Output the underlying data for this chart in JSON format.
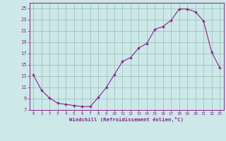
{
  "x": [
    0,
    1,
    2,
    3,
    4,
    5,
    6,
    7,
    8,
    9,
    10,
    11,
    12,
    13,
    14,
    15,
    16,
    17,
    18,
    19,
    20,
    21,
    22,
    23
  ],
  "y": [
    13.2,
    10.5,
    9.1,
    8.2,
    8.0,
    7.8,
    7.6,
    7.6,
    9.2,
    11.0,
    13.3,
    15.6,
    16.3,
    18.0,
    18.8,
    21.3,
    21.8,
    22.9,
    24.9,
    24.9,
    24.4,
    22.8,
    17.3,
    14.5
  ],
  "line_color": "#882288",
  "marker": "+",
  "marker_color": "#882288",
  "bg_color": "#cce8e8",
  "grid_color": "#99bbbb",
  "xlabel": "Windchill (Refroidissement éolien,°C)",
  "xlabel_color": "#882288",
  "tick_color": "#882288",
  "ylim": [
    7,
    26
  ],
  "yticks": [
    7,
    9,
    11,
    13,
    15,
    17,
    19,
    21,
    23,
    25
  ],
  "xlim": [
    -0.5,
    23.5
  ],
  "xticks": [
    0,
    1,
    2,
    3,
    4,
    5,
    6,
    7,
    8,
    9,
    10,
    11,
    12,
    13,
    14,
    15,
    16,
    17,
    18,
    19,
    20,
    21,
    22,
    23
  ]
}
